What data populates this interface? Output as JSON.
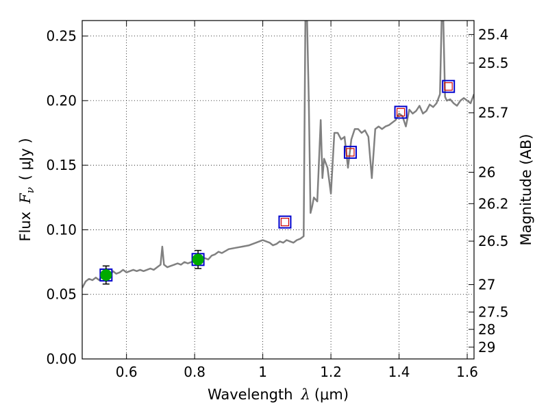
{
  "chart_data": {
    "type": "scatter",
    "xlabel": {
      "prefix": "Wavelength",
      "symbol": "λ",
      "unit": "(μm)"
    },
    "ylabel": {
      "prefix": "Flux",
      "symbol": "F",
      "subscript": "ν",
      "unit": "( μJy )"
    },
    "ylabel_right": "Magnitude (AB)",
    "xlim": [
      0.47,
      1.62
    ],
    "ylim": [
      0.0,
      0.262
    ],
    "grid": true,
    "x_ticks": [
      {
        "value": 0.6,
        "label": "0.6"
      },
      {
        "value": 0.8,
        "label": "0.8"
      },
      {
        "value": 1.0,
        "label": "1"
      },
      {
        "value": 1.2,
        "label": "1.2"
      },
      {
        "value": 1.4,
        "label": "1.4"
      },
      {
        "value": 1.6,
        "label": "1.6"
      }
    ],
    "y_ticks": [
      {
        "value": 0.0,
        "label": "0.00"
      },
      {
        "value": 0.05,
        "label": "0.05"
      },
      {
        "value": 0.1,
        "label": "0.10"
      },
      {
        "value": 0.15,
        "label": "0.15"
      },
      {
        "value": 0.2,
        "label": "0.20"
      },
      {
        "value": 0.25,
        "label": "0.25"
      }
    ],
    "mag_ticks": [
      {
        "label": "25.4",
        "value": 25.4
      },
      {
        "label": "25.5",
        "value": 25.5
      },
      {
        "label": "25.7",
        "value": 25.7
      },
      {
        "label": "26",
        "value": 26.0
      },
      {
        "label": "26.2",
        "value": 26.2
      },
      {
        "label": "26.5",
        "value": 26.5
      },
      {
        "label": "27",
        "value": 27.0
      },
      {
        "label": "27.5",
        "value": 27.5
      },
      {
        "label": "28",
        "value": 28.0
      },
      {
        "label": "29",
        "value": 29.0
      }
    ],
    "model_spectrum": {
      "color": "#808080",
      "x": [
        0.47,
        0.48,
        0.49,
        0.5,
        0.51,
        0.52,
        0.53,
        0.54,
        0.55,
        0.56,
        0.57,
        0.58,
        0.59,
        0.6,
        0.61,
        0.62,
        0.63,
        0.64,
        0.65,
        0.66,
        0.67,
        0.68,
        0.69,
        0.7,
        0.705,
        0.71,
        0.72,
        0.73,
        0.74,
        0.75,
        0.76,
        0.77,
        0.78,
        0.79,
        0.8,
        0.81,
        0.82,
        0.83,
        0.84,
        0.85,
        0.86,
        0.87,
        0.88,
        0.9,
        0.92,
        0.94,
        0.96,
        0.98,
        1.0,
        1.01,
        1.02,
        1.03,
        1.04,
        1.05,
        1.06,
        1.07,
        1.08,
        1.09,
        1.1,
        1.11,
        1.12,
        1.125,
        1.13,
        1.135,
        1.14,
        1.145,
        1.15,
        1.16,
        1.17,
        1.175,
        1.18,
        1.19,
        1.2,
        1.21,
        1.22,
        1.23,
        1.24,
        1.25,
        1.26,
        1.27,
        1.28,
        1.29,
        1.3,
        1.31,
        1.32,
        1.33,
        1.34,
        1.35,
        1.36,
        1.37,
        1.38,
        1.39,
        1.4,
        1.41,
        1.42,
        1.43,
        1.44,
        1.45,
        1.46,
        1.47,
        1.48,
        1.49,
        1.5,
        1.51,
        1.52,
        1.525,
        1.53,
        1.535,
        1.54,
        1.55,
        1.56,
        1.57,
        1.58,
        1.59,
        1.6,
        1.61,
        1.62
      ],
      "y": [
        0.055,
        0.06,
        0.062,
        0.061,
        0.063,
        0.061,
        0.065,
        0.066,
        0.064,
        0.068,
        0.066,
        0.067,
        0.069,
        0.067,
        0.068,
        0.069,
        0.068,
        0.069,
        0.068,
        0.069,
        0.07,
        0.069,
        0.071,
        0.073,
        0.087,
        0.073,
        0.071,
        0.072,
        0.073,
        0.074,
        0.073,
        0.075,
        0.074,
        0.075,
        0.076,
        0.077,
        0.078,
        0.078,
        0.077,
        0.08,
        0.081,
        0.083,
        0.082,
        0.085,
        0.086,
        0.087,
        0.088,
        0.09,
        0.092,
        0.091,
        0.09,
        0.088,
        0.089,
        0.091,
        0.09,
        0.092,
        0.091,
        0.09,
        0.092,
        0.093,
        0.095,
        0.262,
        0.262,
        0.2,
        0.113,
        0.118,
        0.125,
        0.122,
        0.185,
        0.14,
        0.155,
        0.148,
        0.128,
        0.175,
        0.175,
        0.17,
        0.172,
        0.148,
        0.17,
        0.178,
        0.178,
        0.175,
        0.177,
        0.172,
        0.14,
        0.178,
        0.18,
        0.178,
        0.18,
        0.181,
        0.183,
        0.185,
        0.19,
        0.188,
        0.18,
        0.193,
        0.19,
        0.192,
        0.196,
        0.19,
        0.192,
        0.197,
        0.195,
        0.198,
        0.205,
        0.262,
        0.262,
        0.203,
        0.2,
        0.201,
        0.198,
        0.196,
        0.2,
        0.202,
        0.2,
        0.198,
        0.205
      ]
    },
    "photometry": [
      {
        "x": 0.54,
        "y": 0.065,
        "yerr": 0.007,
        "model": 0.065
      },
      {
        "x": 0.81,
        "y": 0.077,
        "yerr": 0.007,
        "model": 0.077
      }
    ],
    "model_bandpass": [
      {
        "x": 1.065,
        "model": 0.106
      },
      {
        "x": 1.257,
        "model": 0.16
      },
      {
        "x": 1.405,
        "model": 0.191
      },
      {
        "x": 1.545,
        "model": 0.211
      }
    ],
    "colors": {
      "observed": "#00aa00",
      "model_box": "#0000cc",
      "model_inner": "#cc0000",
      "errorbar": "#000000",
      "grid": "#000000"
    }
  }
}
